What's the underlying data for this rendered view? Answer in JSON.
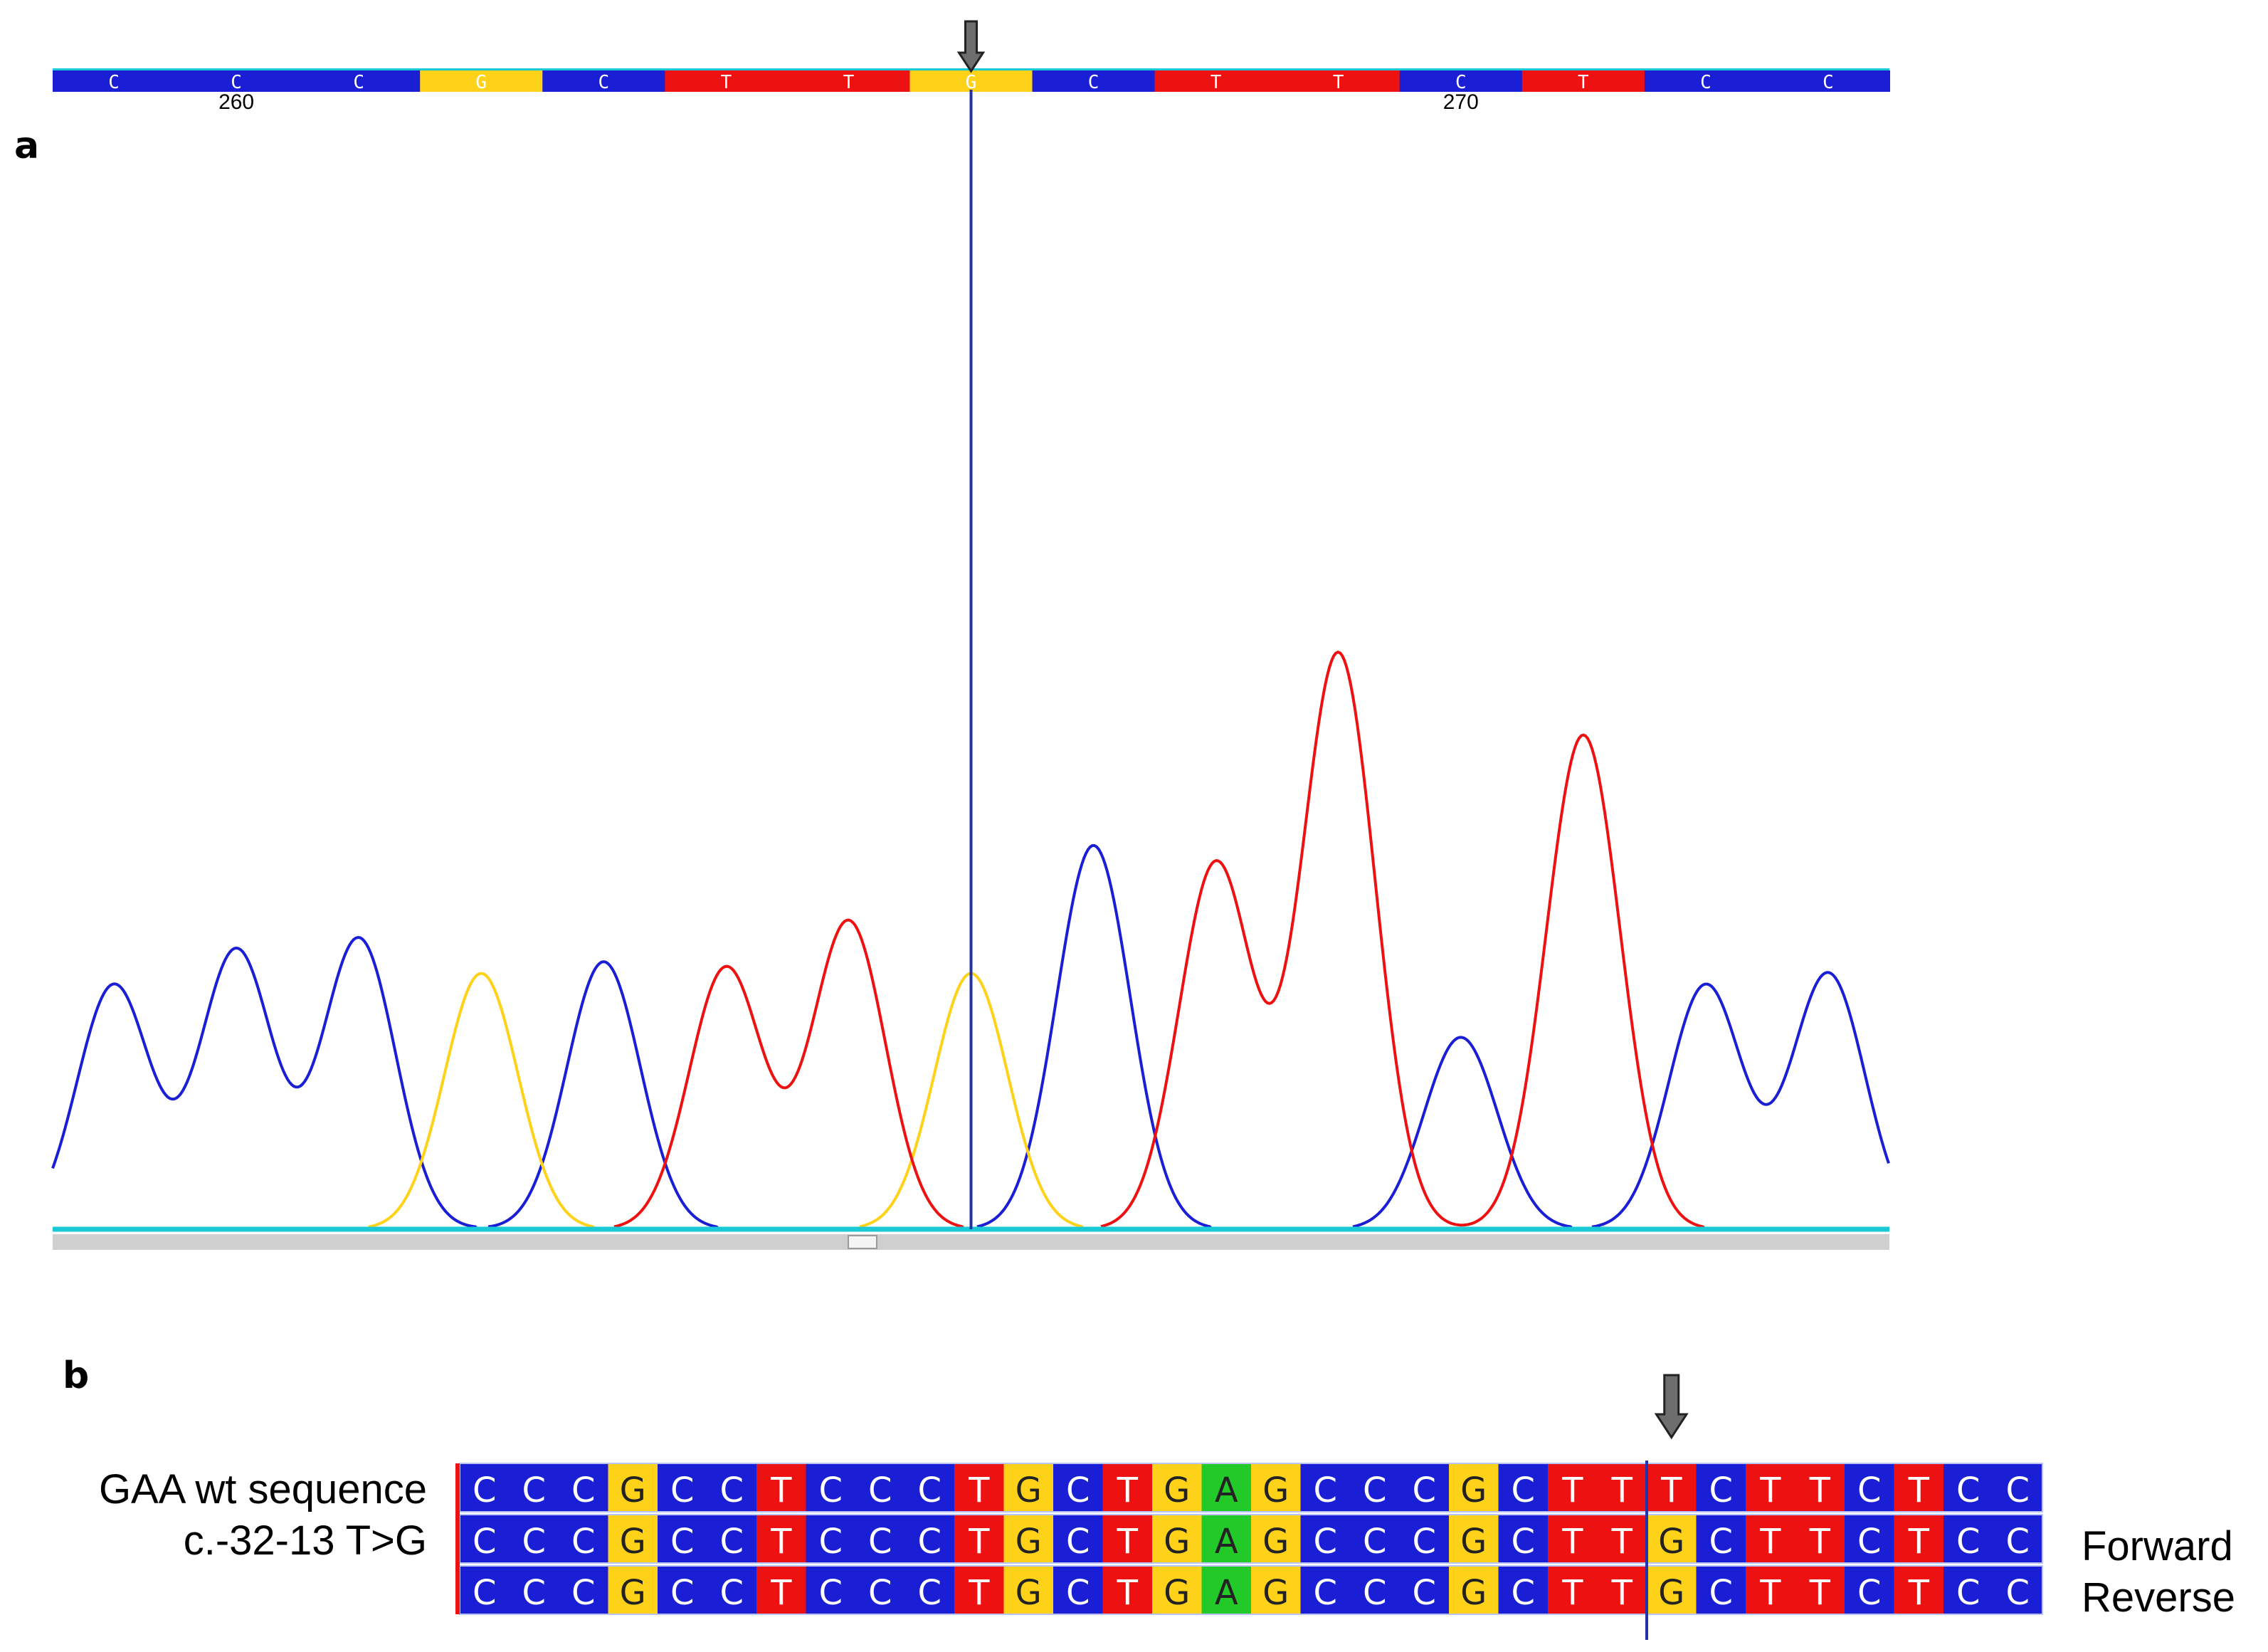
{
  "panels": {
    "a": "a",
    "b": "b"
  },
  "colors": {
    "A": "#22c928",
    "C": "#1a1fd6",
    "G": "#ffd21a",
    "T": "#ee1111",
    "baseline": "#19c9d6",
    "cursor": "#2233aa",
    "arrow": "#6e6e6e"
  },
  "chart_data": {
    "type": "line",
    "title": "",
    "xlabel": "",
    "ylabel": "",
    "base_calls": [
      "C",
      "C",
      "C",
      "G",
      "C",
      "T",
      "T",
      "G",
      "C",
      "T",
      "T",
      "C",
      "T",
      "C",
      "C"
    ],
    "position_ticks": [
      {
        "label": "260",
        "base_index": 1
      },
      {
        "label": "270",
        "base_index": 11
      }
    ],
    "cursor_base_index": 7,
    "y_range": [
      0,
      100
    ],
    "peaks": [
      {
        "base": "C",
        "height": 42
      },
      {
        "base": "C",
        "height": 48
      },
      {
        "base": "C",
        "height": 50
      },
      {
        "base": "G",
        "height": 44
      },
      {
        "base": "C",
        "height": 46
      },
      {
        "base": "T",
        "height": 45
      },
      {
        "base": "T",
        "height": 53
      },
      {
        "base": "G",
        "height": 44
      },
      {
        "base": "C",
        "height": 66
      },
      {
        "base": "T",
        "height": 63
      },
      {
        "base": "T",
        "height": 99
      },
      {
        "base": "C",
        "height": 33
      },
      {
        "base": "T",
        "height": 85
      },
      {
        "base": "C",
        "height": 42
      },
      {
        "base": "C",
        "height": 44
      }
    ],
    "series": [
      {
        "base": "C",
        "color": "#1a1fd6"
      },
      {
        "base": "G",
        "color": "#ffd21a"
      },
      {
        "base": "T",
        "color": "#ee1111"
      }
    ]
  },
  "alignment": {
    "sequence": [
      "C",
      "C",
      "C",
      "G",
      "C",
      "C",
      "T",
      "C",
      "C",
      "C",
      "T",
      "G",
      "C",
      "T",
      "G",
      "A",
      "G",
      "C",
      "C",
      "C",
      "G",
      "C",
      "T",
      "T",
      "T",
      "C",
      "T",
      "T",
      "C",
      "T",
      "C",
      "C"
    ],
    "rows": [
      {
        "label": "GAA wt sequence",
        "side_label": "",
        "bases": [
          "C",
          "C",
          "C",
          "G",
          "C",
          "C",
          "T",
          "C",
          "C",
          "C",
          "T",
          "G",
          "C",
          "T",
          "G",
          "A",
          "G",
          "C",
          "C",
          "C",
          "G",
          "C",
          "T",
          "T",
          "T",
          "C",
          "T",
          "T",
          "C",
          "T",
          "C",
          "C"
        ]
      },
      {
        "label": "c.-32-13 T>G",
        "side_label": "Forward",
        "bases": [
          "C",
          "C",
          "C",
          "G",
          "C",
          "C",
          "T",
          "C",
          "C",
          "C",
          "T",
          "G",
          "C",
          "T",
          "G",
          "A",
          "G",
          "C",
          "C",
          "C",
          "G",
          "C",
          "T",
          "T",
          "G",
          "C",
          "T",
          "T",
          "C",
          "T",
          "C",
          "C"
        ]
      },
      {
        "label": "",
        "side_label": "Reverse",
        "bases": [
          "C",
          "C",
          "C",
          "G",
          "C",
          "C",
          "T",
          "C",
          "C",
          "C",
          "T",
          "G",
          "C",
          "T",
          "G",
          "A",
          "G",
          "C",
          "C",
          "C",
          "G",
          "C",
          "T",
          "T",
          "G",
          "C",
          "T",
          "T",
          "C",
          "T",
          "C",
          "C"
        ]
      }
    ],
    "variant_index": 24
  }
}
